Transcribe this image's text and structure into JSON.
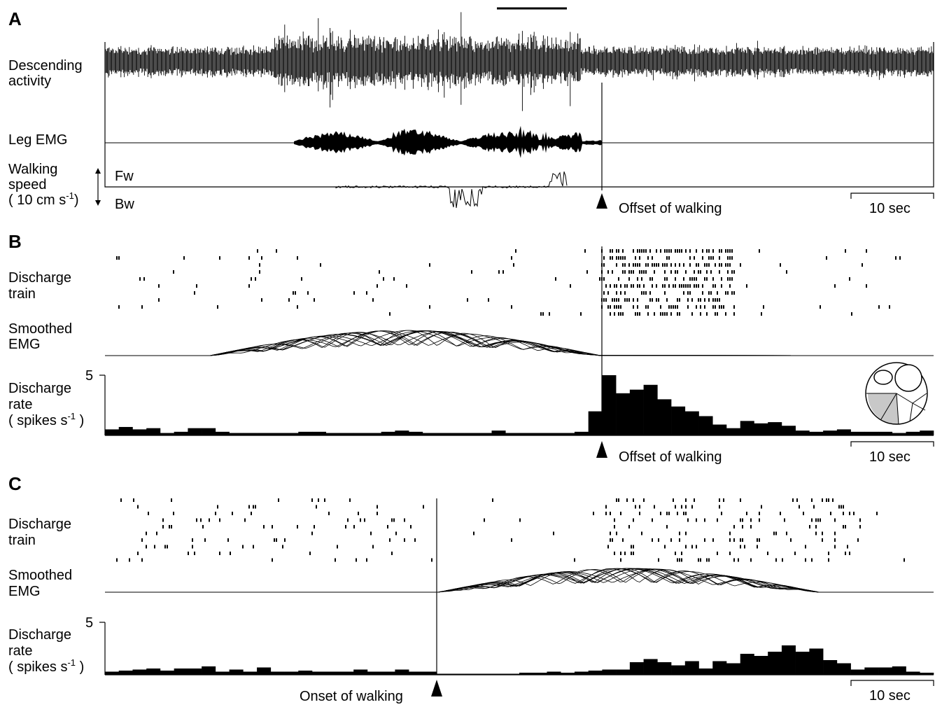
{
  "panels": [
    {
      "id": "A",
      "letter": "A",
      "labels": {
        "descending": [
          "Descending",
          "activity"
        ],
        "emg": "Leg EMG",
        "speed": [
          "Walking",
          "speed",
          "( 10 cm s",
          "-1",
          ")"
        ],
        "fw": "Fw",
        "bw": "Bw"
      },
      "event_label": "Offset of walking",
      "scale_bar_label": "10 sec"
    },
    {
      "id": "B",
      "letter": "B",
      "labels": {
        "train": [
          "Discharge",
          "train"
        ],
        "emg": [
          "Smoothed",
          "EMG"
        ],
        "rate": [
          "Discharge",
          "rate",
          "( spikes s",
          "-1",
          " )"
        ]
      },
      "rate_axis_tick": "5",
      "event_label": "Offset of walking",
      "scale_bar_label": "10 sec",
      "inset": "body-section-schematic",
      "chart_data": {
        "type": "bar",
        "title": "",
        "xlabel": "",
        "ylabel": "Discharge rate ( spikes s-1 )",
        "ylim": [
          0,
          5
        ],
        "bins": 60,
        "event_bin": 35,
        "values": [
          0.5,
          0.7,
          0.5,
          0.6,
          0.2,
          0.3,
          0.6,
          0.6,
          0.3,
          0.2,
          0.2,
          0.2,
          0.2,
          0.2,
          0.3,
          0.3,
          0.2,
          0.2,
          0.2,
          0.2,
          0.3,
          0.4,
          0.3,
          0.2,
          0.2,
          0.2,
          0.2,
          0.2,
          0.4,
          0.2,
          0.2,
          0.2,
          0.2,
          0.2,
          0.3,
          2.0,
          5.0,
          3.5,
          3.8,
          4.2,
          3.0,
          2.4,
          2.0,
          1.6,
          0.9,
          0.6,
          1.2,
          1.0,
          1.1,
          0.8,
          0.4,
          0.3,
          0.4,
          0.5,
          0.3,
          0.3,
          0.3,
          0.2,
          0.3,
          0.4
        ]
      }
    },
    {
      "id": "C",
      "letter": "C",
      "labels": {
        "train": [
          "Discharge",
          "train"
        ],
        "emg": [
          "Smoothed",
          "EMG"
        ],
        "rate": [
          "Discharge",
          "rate",
          "( spikes s",
          "-1",
          " )"
        ]
      },
      "rate_axis_tick": "5",
      "event_label": "Onset of walking",
      "scale_bar_label": "10 sec",
      "chart_data": {
        "type": "bar",
        "title": "",
        "xlabel": "",
        "ylabel": "Discharge rate ( spikes s-1 )",
        "ylim": [
          0,
          5
        ],
        "bins": 60,
        "event_bin": 24,
        "values": [
          0.3,
          0.4,
          0.5,
          0.6,
          0.4,
          0.6,
          0.6,
          0.8,
          0.3,
          0.5,
          0.3,
          0.7,
          0.3,
          0.3,
          0.4,
          0.3,
          0.3,
          0.3,
          0.5,
          0.3,
          0.3,
          0.5,
          0.3,
          0.3,
          0.1,
          0.1,
          0.1,
          0.1,
          0.1,
          0.1,
          0.2,
          0.2,
          0.3,
          0.2,
          0.3,
          0.4,
          0.5,
          0.5,
          1.2,
          1.5,
          1.2,
          0.9,
          1.3,
          0.6,
          1.3,
          1.1,
          2.0,
          1.8,
          2.2,
          2.8,
          2.2,
          2.5,
          1.4,
          1.1,
          0.5,
          0.7,
          0.7,
          0.8,
          0.3,
          0.2
        ]
      }
    }
  ]
}
